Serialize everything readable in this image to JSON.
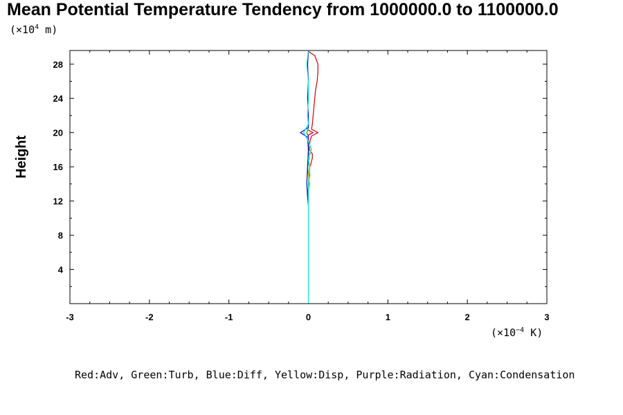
{
  "chart_data": {
    "type": "line",
    "title": "Mean Potential Temperature Tendency from 1000000.0 to 1100000.0",
    "ylabel": "Height",
    "y_unit": {
      "prefix": "(×10",
      "exp": "4",
      "suffix": " m)"
    },
    "x_unit": {
      "prefix": "(×10",
      "exp": "−4",
      "suffix": " K)"
    },
    "xlim": [
      -3,
      3
    ],
    "ylim": [
      0,
      29.6
    ],
    "xticks": [
      "-3",
      "-2",
      "-1",
      "0",
      "1",
      "2",
      "3"
    ],
    "yticks": [
      "4",
      "8",
      "12",
      "16",
      "20",
      "24",
      "28"
    ],
    "legend": "Red:Adv, Green:Turb, Blue:Diff, Yellow:Disp, Purple:Radiation, Cyan:Condensation",
    "series": [
      {
        "name": "Adv",
        "color": "#cc0000",
        "points": [
          [
            0.0,
            29.5
          ],
          [
            0.08,
            29.0
          ],
          [
            0.12,
            28.0
          ],
          [
            0.12,
            27.0
          ],
          [
            0.11,
            26.0
          ],
          [
            0.09,
            25.0
          ],
          [
            0.08,
            24.0
          ],
          [
            0.07,
            23.0
          ],
          [
            0.06,
            22.0
          ],
          [
            0.05,
            21.0
          ],
          [
            0.04,
            20.4
          ],
          [
            0.12,
            20.0
          ],
          [
            0.04,
            19.6
          ],
          [
            0.02,
            19.0
          ],
          [
            0.01,
            18.0
          ],
          [
            0.05,
            17.5
          ],
          [
            0.05,
            17.0
          ],
          [
            0.02,
            16.0
          ],
          [
            0.01,
            15.0
          ],
          [
            0.0,
            14.0
          ],
          [
            0.0,
            13.0
          ],
          [
            0.0,
            12.0
          ],
          [
            0.0,
            11.8
          ]
        ]
      },
      {
        "name": "Turb",
        "color": "#00aa00",
        "points": [
          [
            0.0,
            20.5
          ],
          [
            -0.02,
            20.0
          ],
          [
            0.0,
            19.5
          ],
          [
            -0.01,
            19.0
          ],
          [
            0.0,
            18.0
          ],
          [
            0.01,
            17.0
          ],
          [
            -0.01,
            16.0
          ],
          [
            0.0,
            15.0
          ],
          [
            0.01,
            14.0
          ],
          [
            -0.01,
            13.0
          ],
          [
            0.0,
            12.0
          ]
        ]
      },
      {
        "name": "Diff",
        "color": "#0000cc",
        "points": [
          [
            0.0,
            29.4
          ],
          [
            -0.01,
            28.0
          ],
          [
            0.0,
            26.0
          ],
          [
            -0.01,
            24.0
          ],
          [
            0.0,
            22.0
          ],
          [
            0.0,
            20.6
          ],
          [
            -0.1,
            20.0
          ],
          [
            0.0,
            19.4
          ],
          [
            0.0,
            18.0
          ],
          [
            -0.01,
            16.0
          ],
          [
            -0.02,
            14.0
          ],
          [
            -0.01,
            12.5
          ],
          [
            0.0,
            11.5
          ]
        ]
      },
      {
        "name": "Disp",
        "color": "#ffd700",
        "points": [
          [
            0.0,
            20.3
          ],
          [
            0.03,
            20.0
          ],
          [
            0.0,
            19.7
          ],
          [
            0.0,
            19.0
          ],
          [
            0.03,
            18.0
          ],
          [
            0.0,
            17.0
          ],
          [
            0.02,
            16.0
          ],
          [
            0.0,
            15.0
          ],
          [
            0.02,
            14.0
          ],
          [
            0.0,
            13.0
          ]
        ]
      },
      {
        "name": "Radiation",
        "color": "#aa00aa",
        "points": [
          [
            0.0,
            20.3
          ],
          [
            0.06,
            20.0
          ],
          [
            0.0,
            19.7
          ],
          [
            0.0,
            19.0
          ]
        ]
      },
      {
        "name": "Condensation",
        "color": "#00e5ee",
        "points": [
          [
            0.0,
            29.6
          ],
          [
            -0.02,
            28.0
          ],
          [
            0.0,
            26.0
          ],
          [
            0.0,
            24.0
          ],
          [
            -0.01,
            22.0
          ],
          [
            0.0,
            21.0
          ],
          [
            -0.06,
            20.0
          ],
          [
            0.0,
            19.0
          ],
          [
            0.04,
            18.0
          ],
          [
            0.02,
            17.5
          ],
          [
            0.0,
            17.0
          ],
          [
            0.02,
            15.0
          ],
          [
            0.0,
            14.0
          ],
          [
            0.0,
            12.0
          ],
          [
            0.0,
            8.0
          ],
          [
            0.0,
            4.0
          ],
          [
            0.0,
            0.0
          ]
        ]
      }
    ]
  }
}
